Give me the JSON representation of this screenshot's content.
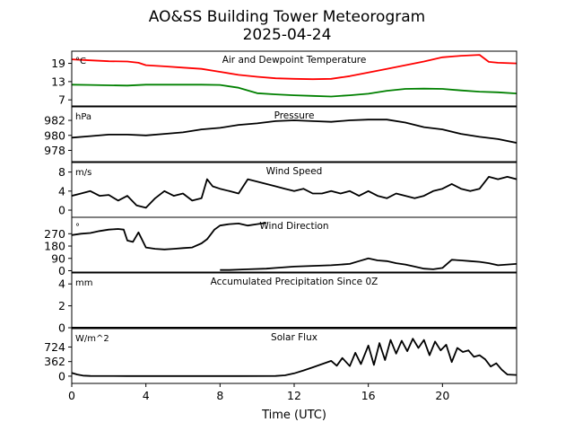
{
  "title_line1": "AO&SS Building Tower Meteorogram",
  "title_line2": "2025-04-24",
  "xlabel": "Time (UTC)",
  "chart_data": {
    "type": "line",
    "x_ticks": [
      "0",
      "4",
      "8",
      "12",
      "16",
      "20"
    ],
    "xlim": [
      0,
      24
    ],
    "panels": [
      {
        "id": "temp",
        "label": "Air and Dewpoint Temperature",
        "unit": "°C",
        "ylim": [
          5,
          23
        ],
        "yticks": [
          "19",
          "13",
          "7"
        ],
        "ytick_values": [
          19,
          13,
          7
        ],
        "series": [
          {
            "color": "#ff0000",
            "x": [
              0,
              1,
              2,
              3,
              3.6,
              4,
              5,
              6,
              7,
              8,
              9,
              10,
              11,
              12,
              13,
              14,
              15,
              16,
              17,
              18,
              19,
              20,
              21,
              22,
              22.5,
              23,
              24
            ],
            "y": [
              20.3,
              20.0,
              19.7,
              19.6,
              19.2,
              18.4,
              18.0,
              17.6,
              17.2,
              16.2,
              15.2,
              14.6,
              14.1,
              13.9,
              13.8,
              13.9,
              14.8,
              16.0,
              17.2,
              18.4,
              19.6,
              21.0,
              21.5,
              21.8,
              19.5,
              19.2,
              19.0
            ]
          },
          {
            "color": "#008000",
            "x": [
              0,
              1,
              2,
              3,
              4,
              5,
              6,
              7,
              8,
              9,
              10,
              11,
              12,
              13,
              14,
              15,
              16,
              17,
              18,
              19,
              20,
              21,
              22,
              23,
              24
            ],
            "y": [
              12.0,
              11.9,
              11.8,
              11.7,
              12.0,
              12.0,
              12.0,
              12.0,
              11.9,
              11.0,
              9.2,
              8.8,
              8.5,
              8.3,
              8.1,
              8.5,
              9.0,
              10.0,
              10.6,
              10.7,
              10.6,
              10.1,
              9.7,
              9.5,
              9.1
            ]
          }
        ]
      },
      {
        "id": "pressure",
        "label": "Pressure",
        "unit": "hPa",
        "ylim": [
          976.5,
          983.8
        ],
        "yticks": [
          "982",
          "980",
          "978"
        ],
        "ytick_values": [
          982,
          980,
          978
        ],
        "series": [
          {
            "color": "#000000",
            "x": [
              0,
              1,
              2,
              3,
              4,
              5,
              6,
              7,
              8,
              9,
              10,
              11,
              12,
              13,
              14,
              15,
              16,
              17,
              18,
              19,
              20,
              21,
              22,
              23,
              24
            ],
            "y": [
              979.7,
              979.9,
              980.1,
              980.1,
              980.0,
              980.2,
              980.4,
              980.8,
              981.0,
              981.4,
              981.6,
              981.9,
              982.0,
              981.9,
              981.8,
              982.0,
              982.1,
              982.1,
              981.7,
              981.1,
              980.8,
              980.2,
              979.8,
              979.5,
              979.0
            ]
          }
        ]
      },
      {
        "id": "windspeed",
        "label": "Wind Speed",
        "unit": "m/s",
        "ylim": [
          -1.5,
          10
        ],
        "yticks": [
          "8",
          "4",
          "0"
        ],
        "ytick_values": [
          8,
          4,
          0
        ],
        "series": [
          {
            "color": "#000000",
            "x": [
              0,
              0.5,
              1,
              1.5,
              2,
              2.5,
              3,
              3.5,
              4,
              4.5,
              5,
              5.5,
              6,
              6.5,
              7,
              7.3,
              7.6,
              8,
              8.5,
              9,
              9.5,
              10,
              10.5,
              11,
              11.5,
              12,
              12.5,
              13,
              13.5,
              14,
              14.5,
              15,
              15.5,
              16,
              16.5,
              17,
              17.5,
              18,
              18.5,
              19,
              19.5,
              20,
              20.5,
              21,
              21.5,
              22,
              22.5,
              23,
              23.5,
              24
            ],
            "y": [
              3,
              3.5,
              4,
              3,
              3.2,
              2,
              3,
              1,
              0.5,
              2.5,
              4,
              3,
              3.5,
              2,
              2.5,
              6.5,
              5,
              4.5,
              4,
              3.5,
              6.5,
              6,
              5.5,
              5,
              4.5,
              4,
              4.5,
              3.5,
              3.5,
              4,
              3.5,
              4,
              3,
              4,
              3,
              2.5,
              3.5,
              3,
              2.5,
              3,
              4,
              4.5,
              5.5,
              4.5,
              4,
              4.5,
              7,
              6.5,
              7,
              6.5
            ]
          }
        ]
      },
      {
        "id": "winddir",
        "label": "Wind Direction",
        "unit": "°",
        "ylim": [
          -10,
          390
        ],
        "yticks": [
          "270",
          "180",
          "90",
          "0"
        ],
        "ytick_values": [
          270,
          180,
          90,
          0
        ],
        "series": [
          {
            "color": "#000000",
            "x": [
              0,
              0.5,
              1,
              1.5,
              2,
              2.5,
              2.8,
              3,
              3.3,
              3.6,
              4,
              4.5,
              5,
              5.5,
              6,
              6.5,
              7,
              7.3,
              7.7,
              8,
              8.5,
              9,
              9.5,
              10,
              10.5
            ],
            "y": [
              260,
              270,
              275,
              290,
              300,
              305,
              300,
              220,
              210,
              280,
              170,
              160,
              155,
              160,
              165,
              170,
              200,
              230,
              300,
              330,
              340,
              345,
              330,
              340,
              350
            ]
          },
          {
            "color": "#000000",
            "x": [
              8,
              8.5,
              9.5,
              10.5,
              11,
              12,
              13,
              14,
              15,
              15.5,
              16,
              16.5,
              17,
              17.5,
              18,
              18.5,
              19,
              19.5,
              20,
              20.5,
              21,
              21.5,
              22,
              22.5,
              23,
              23.5,
              24
            ],
            "y": [
              5,
              5,
              10,
              15,
              20,
              30,
              35,
              40,
              50,
              70,
              90,
              75,
              70,
              55,
              45,
              30,
              15,
              10,
              20,
              80,
              75,
              70,
              65,
              55,
              40,
              45,
              50
            ]
          }
        ]
      },
      {
        "id": "precip",
        "label": "Accumulated Precipitation Since 0Z",
        "unit": "mm",
        "ylim": [
          0,
          5
        ],
        "yticks": [
          "4",
          "2",
          "0"
        ],
        "ytick_values": [
          4,
          2,
          0
        ],
        "series": [
          {
            "color": "#000000",
            "x": [
              0,
              24
            ],
            "y": [
              0,
              0
            ]
          }
        ]
      },
      {
        "id": "solar",
        "label": "Solar Flux",
        "unit": "W/m^2",
        "ylim": [
          -180,
          1180
        ],
        "yticks": [
          "724",
          "362",
          "0"
        ],
        "ytick_values": [
          724,
          362,
          0
        ],
        "series": [
          {
            "color": "#000000",
            "x": [
              0,
              0.3,
              0.6,
              1,
              3,
              5,
              7,
              9,
              11,
              11.5,
              12,
              12.5,
              13,
              13.5,
              14,
              14.3,
              14.6,
              15,
              15.3,
              15.6,
              16,
              16.3,
              16.6,
              16.9,
              17.2,
              17.5,
              17.8,
              18.1,
              18.4,
              18.7,
              19,
              19.3,
              19.6,
              19.9,
              20.2,
              20.5,
              20.8,
              21.1,
              21.4,
              21.7,
              22,
              22.3,
              22.6,
              22.9,
              23.2,
              23.5,
              24
            ],
            "y": [
              80,
              40,
              15,
              5,
              3,
              3,
              3,
              3,
              5,
              20,
              70,
              140,
              220,
              300,
              380,
              260,
              450,
              250,
              580,
              300,
              760,
              280,
              820,
              400,
              900,
              560,
              880,
              620,
              930,
              700,
              900,
              520,
              860,
              640,
              780,
              350,
              700,
              600,
              640,
              480,
              520,
              420,
              240,
              320,
              160,
              40,
              30
            ]
          }
        ]
      }
    ]
  }
}
